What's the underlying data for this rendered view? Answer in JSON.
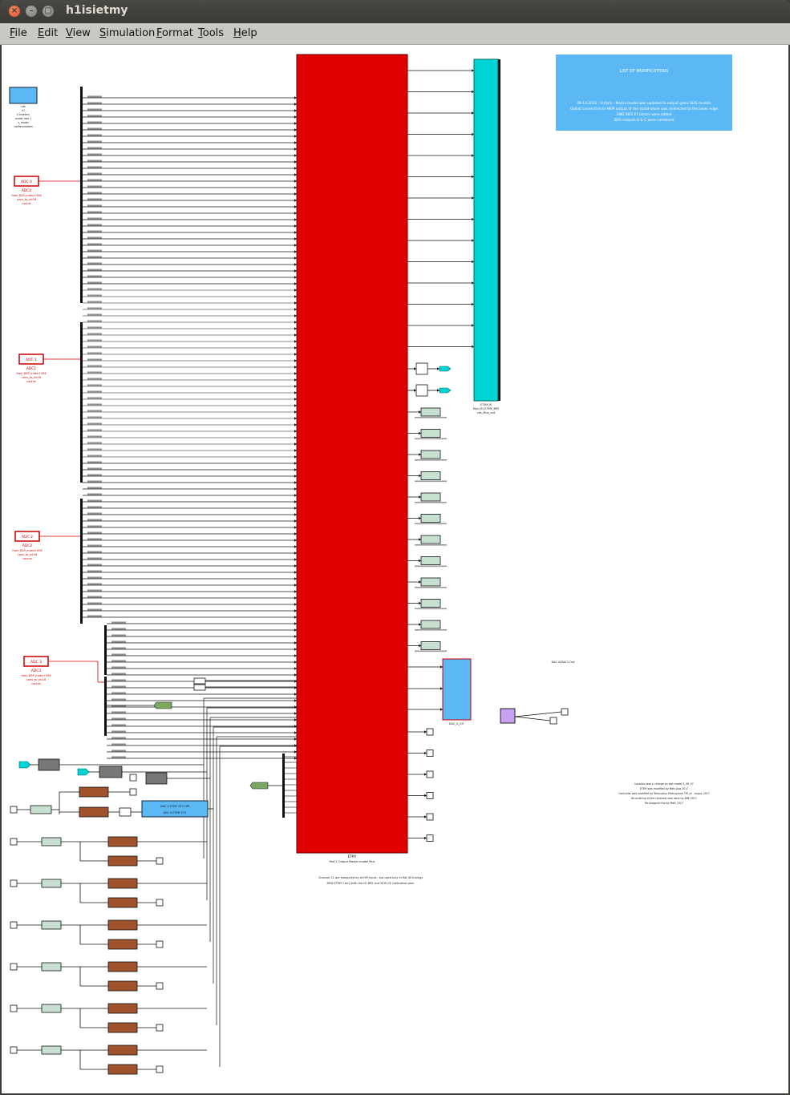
{
  "window": {
    "title": "h1isietmy"
  },
  "menu": [
    "File",
    "Edit",
    "View",
    "Simulation",
    "Format",
    "Tools",
    "Help"
  ],
  "colors": {
    "main_block": "#e00000",
    "cyan_bus": "#00d4d4",
    "info_box": "#5bb8f5",
    "adc_red": "#cc0000",
    "brown": "#a0522d",
    "pale_green": "#c8e0d0",
    "blue_block": "#5bb8f5",
    "purple": "#c8a0f0"
  },
  "modifications": {
    "title": "LIST OF MODIFICATIONS",
    "lines": [
      "09-14-2012 : H.Paris - Matrix model was updated to output gains SEIS models",
      "Global connection to HEPI output of the stand-alone was redirected to the lower edge",
      "GND SEIS EY blocks were added",
      "SEIS outputs B & C were combined"
    ]
  },
  "adc_blocks": [
    {
      "label": "ADC 0",
      "name": "ADC0",
      "sub": "from DSP_Index+556",
      "sub2": "conv_to_int16",
      "sub3": "counts"
    },
    {
      "label": "ADC 1",
      "name": "ADC1",
      "sub": "from DSP_Index+556",
      "sub2": "conv_to_int16",
      "sub3": "counts"
    },
    {
      "label": "ADC 2",
      "name": "ADC2",
      "sub": "from DSP_Index+556",
      "sub2": "conv_to_int16",
      "sub3": "counts"
    },
    {
      "label": "ADC 3",
      "name": "ADC3",
      "sub": "from DSP_Index+556",
      "sub2": "conv_to_int16",
      "sub3": "counts"
    }
  ],
  "top_left_block": {
    "lines": [
      "cds",
      "h1",
      "h1isietmy",
      "model rate 1",
      "x_model",
      "cdsParameters"
    ]
  },
  "main_block": {
    "label": "ETMY",
    "sub": "Part 2 Output Master model Mux"
  },
  "cyan_bus": {
    "label": "ETMY_B",
    "sub": "Mux ISI_ETMY_BPS",
    "sub2": "cds_Mux_out"
  },
  "blue_block": {
    "label": "DAC_0_CH",
    "sub": "DAC 0/DAC1 Out"
  },
  "mid_blue": {
    "text1": "DAC 0 ETMY ST1 HPI",
    "text2": "DAC 0 ETMY ST1"
  },
  "right_notes": [
    "Isolation was a change on last model 5_06_97",
    "ETMY was modified by Matt Aug 2017",
    "Controller was modified by Tatsuyatsu Matsuyama TIR Jul - Augus 2017",
    "Re-ordering of the channels was done by ABE 2017",
    "Re-assigned the by Matt 2017"
  ],
  "bottom_note": [
    "Channel 11 are measured by at HPI input ; but used only in flat ISI tunings",
    "BSW ETMY Carry with the ISI BPS and SEIS CE Calibration plan"
  ]
}
